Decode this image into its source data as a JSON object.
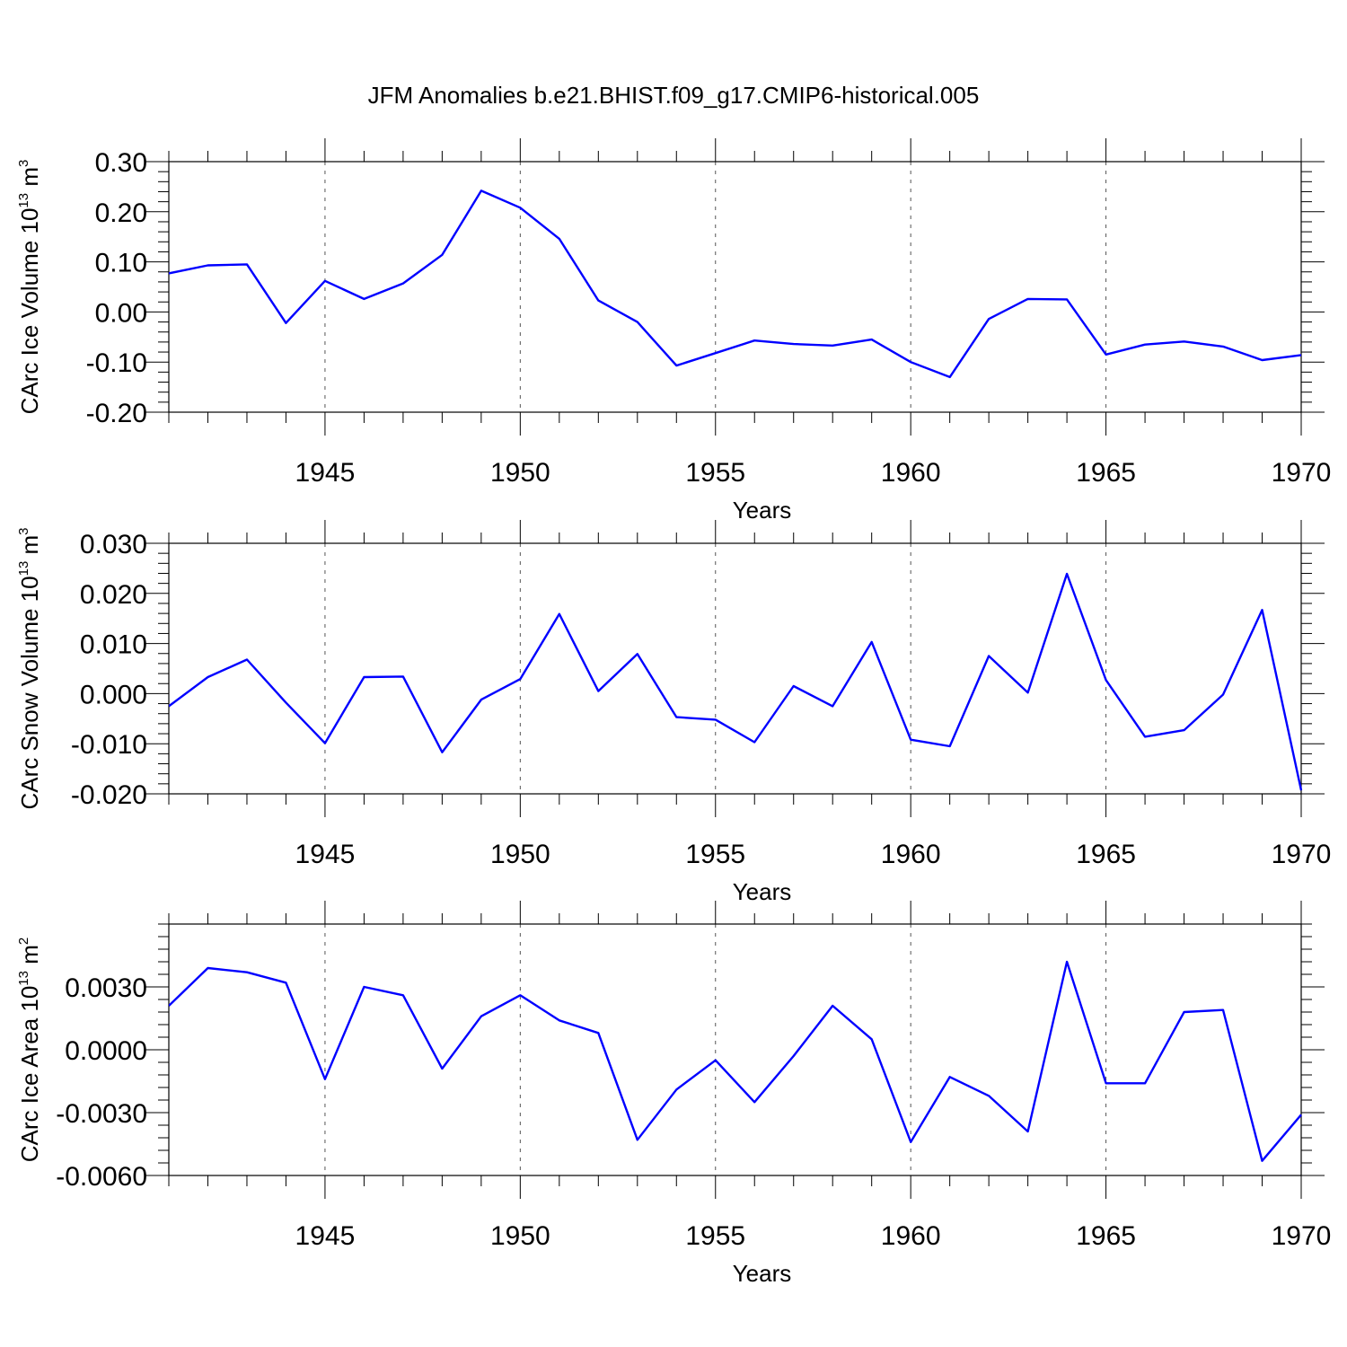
{
  "title": "JFM Anomalies b.e21.BHIST.f09_g17.CMIP6-historical.005",
  "colors": {
    "line": "#0000ff",
    "axis": "#000000",
    "grid": "#555555"
  },
  "chart_data": [
    {
      "type": "line",
      "xlabel": "Years",
      "ylabel": "CArc Ice Volume 10",
      "ylabel_sup": "13",
      "ylabel_unit": "m",
      "ylabel_unit_sup": "3",
      "xlim": [
        1941,
        1970
      ],
      "ylim": [
        -0.2,
        0.3
      ],
      "xticks": [
        1945,
        1950,
        1955,
        1960,
        1965,
        1970
      ],
      "xtick_labels": [
        "1945",
        "1950",
        "1955",
        "1960",
        "1965",
        "1970"
      ],
      "yticks": [
        -0.2,
        -0.1,
        0.0,
        0.1,
        0.2,
        0.3
      ],
      "ytick_labels": [
        "-0.20",
        "-0.10",
        "0.00",
        "0.10",
        "0.20",
        "0.30"
      ],
      "grid": "vertical dashed at major x ticks",
      "x": [
        1941,
        1942,
        1943,
        1944,
        1945,
        1946,
        1947,
        1948,
        1949,
        1950,
        1951,
        1952,
        1953,
        1954,
        1955,
        1956,
        1957,
        1958,
        1959,
        1960,
        1961,
        1962,
        1963,
        1964,
        1965,
        1966,
        1967,
        1968,
        1969,
        1970
      ],
      "values": [
        0.077,
        0.093,
        0.095,
        -0.022,
        0.062,
        0.026,
        0.057,
        0.114,
        0.242,
        0.208,
        0.146,
        0.023,
        -0.02,
        -0.107,
        -0.082,
        -0.057,
        -0.064,
        -0.067,
        -0.055,
        -0.1,
        -0.13,
        -0.014,
        0.026,
        0.025,
        -0.085,
        -0.065,
        -0.059,
        -0.069,
        -0.096,
        -0.086
      ]
    },
    {
      "type": "line",
      "xlabel": "Years",
      "ylabel": "CArc Snow Volume 10",
      "ylabel_sup": "13",
      "ylabel_unit": "m",
      "ylabel_unit_sup": "3",
      "xlim": [
        1941,
        1970
      ],
      "ylim": [
        -0.02,
        0.03
      ],
      "xticks": [
        1945,
        1950,
        1955,
        1960,
        1965,
        1970
      ],
      "xtick_labels": [
        "1945",
        "1950",
        "1955",
        "1960",
        "1965",
        "1970"
      ],
      "yticks": [
        -0.02,
        -0.01,
        0.0,
        0.01,
        0.02,
        0.03
      ],
      "ytick_labels": [
        "-0.020",
        "-0.010",
        "0.000",
        "0.010",
        "0.020",
        "0.030"
      ],
      "grid": "vertical dashed at major x ticks",
      "x": [
        1941,
        1942,
        1943,
        1944,
        1945,
        1946,
        1947,
        1948,
        1949,
        1950,
        1951,
        1952,
        1953,
        1954,
        1955,
        1956,
        1957,
        1958,
        1959,
        1960,
        1961,
        1962,
        1963,
        1964,
        1965,
        1966,
        1967,
        1968,
        1969,
        1970
      ],
      "values": [
        -0.0025,
        0.0033,
        0.0068,
        -0.0018,
        -0.0099,
        0.0033,
        0.0034,
        -0.0117,
        -0.0012,
        0.0029,
        0.0159,
        0.0005,
        0.0079,
        -0.0047,
        -0.0052,
        -0.0097,
        0.0015,
        -0.0025,
        0.0103,
        -0.0092,
        -0.0105,
        0.0075,
        0.0002,
        0.0239,
        0.0027,
        -0.0086,
        -0.0073,
        -0.0002,
        0.0167,
        -0.0193
      ]
    },
    {
      "type": "line",
      "xlabel": "Years",
      "ylabel": "CArc Ice Area 10",
      "ylabel_sup": "13",
      "ylabel_unit": "m",
      "ylabel_unit_sup": "2",
      "xlim": [
        1941,
        1970
      ],
      "ylim": [
        -0.006,
        0.006
      ],
      "xticks": [
        1945,
        1950,
        1955,
        1960,
        1965,
        1970
      ],
      "xtick_labels": [
        "1945",
        "1950",
        "1955",
        "1960",
        "1965",
        "1970"
      ],
      "yticks": [
        -0.006,
        -0.003,
        0.0,
        0.003
      ],
      "ytick_labels": [
        "-0.0060",
        "-0.0030",
        "0.0000",
        "0.0030"
      ],
      "grid": "vertical dashed at major x ticks",
      "x": [
        1941,
        1942,
        1943,
        1944,
        1945,
        1946,
        1947,
        1948,
        1949,
        1950,
        1951,
        1952,
        1953,
        1954,
        1955,
        1956,
        1957,
        1958,
        1959,
        1960,
        1961,
        1962,
        1963,
        1964,
        1965,
        1966,
        1967,
        1968,
        1969,
        1970
      ],
      "values": [
        0.0021,
        0.0039,
        0.0037,
        0.0032,
        -0.0014,
        0.003,
        0.0026,
        -0.0009,
        0.0016,
        0.0026,
        0.0014,
        0.0008,
        -0.0043,
        -0.0019,
        -0.0005,
        -0.0025,
        -0.0003,
        0.0021,
        0.0005,
        -0.0044,
        -0.0013,
        -0.0022,
        -0.0039,
        0.0042,
        -0.0016,
        -0.0016,
        0.0018,
        0.0019,
        -0.0053,
        -0.0031
      ]
    }
  ]
}
